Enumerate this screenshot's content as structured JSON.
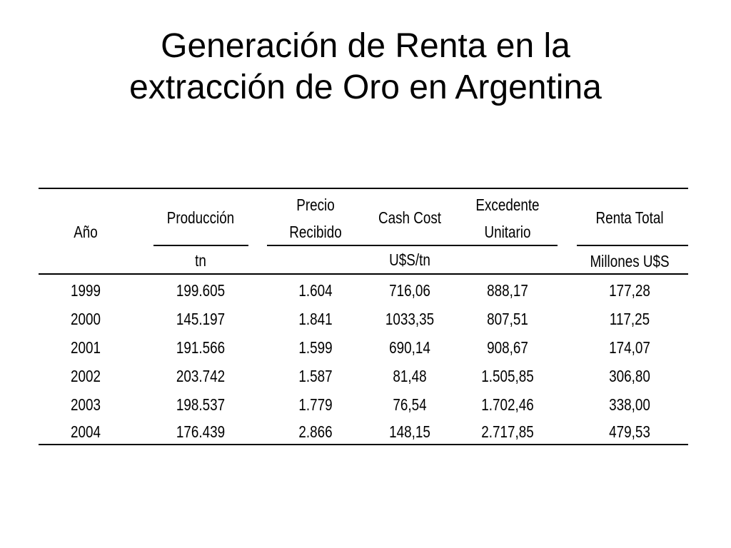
{
  "title": {
    "line1": "Generación de Renta en la",
    "line2": "extracción de Oro en Argentina"
  },
  "table": {
    "headers": {
      "year": "Año",
      "production": "Producción",
      "price_line1": "Precio",
      "price_line2": "Recibido",
      "cash_cost": "Cash Cost",
      "surplus_line1": "Excedente",
      "surplus_line2": "Unitario",
      "total_rent": "Renta Total"
    },
    "units": {
      "production": "tn",
      "usd_per_tn": "U$S/tn",
      "total_rent": "Millones U$S"
    },
    "rows": [
      [
        "1999",
        "199.605",
        "1.604",
        "716,06",
        "888,17",
        "177,28"
      ],
      [
        "2000",
        "145.197",
        "1.841",
        "1033,35",
        "807,51",
        "117,25"
      ],
      [
        "2001",
        "191.566",
        "1.599",
        "690,14",
        "908,67",
        "174,07"
      ],
      [
        "2002",
        "203.742",
        "1.587",
        "81,48",
        "1.505,85",
        "306,80"
      ],
      [
        "2003",
        "198.537",
        "1.779",
        "76,54",
        "1.702,46",
        "338,00"
      ],
      [
        "2004",
        "176.439",
        "2.866",
        "148,15",
        "2.717,85",
        "479,53"
      ]
    ]
  }
}
